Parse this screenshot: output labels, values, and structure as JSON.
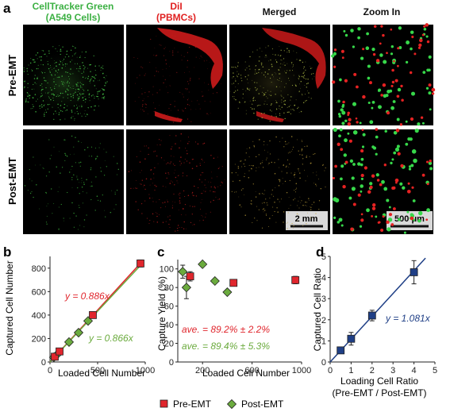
{
  "panel_a": {
    "letter": "a",
    "column_headers": [
      {
        "lines": [
          "CellTracker Green",
          "(A549 Cells)"
        ],
        "color": "#3cb043"
      },
      {
        "lines": [
          "DiI",
          "(PBMCs)"
        ],
        "color": "#e02020"
      },
      {
        "lines": [
          "Merged"
        ],
        "color": "#111111"
      },
      {
        "lines": [
          "Zoom In"
        ],
        "color": "#111111"
      }
    ],
    "row_labels": [
      "Pre-EMT",
      "Post-EMT"
    ],
    "scale_bars": {
      "main": "2 mm",
      "zoom": "500 μm"
    }
  },
  "colors": {
    "green": "#6bab3e",
    "red": "#e0262d",
    "navy": "#1f3f86",
    "green_cells": "#37d84a",
    "red_cells": "#e52222"
  },
  "legend": {
    "pre": "Pre-EMT",
    "post": "Post-EMT"
  },
  "chart_data": [
    {
      "panel": "b",
      "type": "scatter",
      "xlabel": "Loaded Cell Number",
      "ylabel": "Captured Cell Number",
      "xlim": [
        0,
        1000
      ],
      "ylim": [
        0,
        900
      ],
      "xticks": [
        0,
        500,
        1000
      ],
      "yticks": [
        0,
        200,
        400,
        600,
        800
      ],
      "series": [
        {
          "name": "Pre-EMT",
          "x": [
            50,
            100,
            450,
            950
          ],
          "y": [
            45,
            90,
            400,
            840
          ],
          "yerr": [
            3,
            5,
            10,
            30
          ]
        },
        {
          "name": "Post-EMT",
          "x": [
            40,
            70,
            200,
            300,
            400
          ],
          "y": [
            40,
            60,
            170,
            250,
            350
          ],
          "yerr": [
            0,
            0,
            0,
            0,
            0
          ]
        }
      ],
      "fits": [
        {
          "series": "Pre-EMT",
          "slope": 0.886,
          "label": "y = 0.886x"
        },
        {
          "series": "Post-EMT",
          "slope": 0.866,
          "label": "y = 0.866x"
        }
      ]
    },
    {
      "panel": "c",
      "type": "scatter",
      "xlabel": "Loaded Cell Number",
      "ylabel": "Capture Yield (%)",
      "xlim": [
        0,
        1000
      ],
      "ylim": [
        0,
        110
      ],
      "xticks": [
        200,
        600,
        1000
      ],
      "yticks": [
        0,
        20,
        40,
        60,
        80,
        100
      ],
      "series": [
        {
          "name": "Pre-EMT",
          "x": [
            100,
            450,
            950
          ],
          "y": [
            92,
            85,
            88
          ],
          "yerr": [
            5,
            3,
            4
          ]
        },
        {
          "name": "Post-EMT",
          "x": [
            40,
            70,
            200,
            300,
            400
          ],
          "y": [
            97,
            80,
            105,
            87,
            75
          ],
          "yerr": [
            7,
            12,
            0,
            0,
            0
          ]
        }
      ],
      "annotations": [
        {
          "text": "ave. = 89.2% ± 2.2%",
          "series": "Pre-EMT"
        },
        {
          "text": "ave. = 89.4% ± 5.3%",
          "series": "Post-EMT"
        }
      ]
    },
    {
      "panel": "d",
      "type": "scatter",
      "xlabel": [
        "Loading Cell Ratio",
        "(Pre-EMT / Post-EMT)"
      ],
      "ylabel": "Captured Cell Ratio",
      "xlim": [
        0,
        5
      ],
      "ylim": [
        0,
        5
      ],
      "xticks": [
        0,
        1,
        2,
        3,
        4,
        5
      ],
      "yticks": [
        0,
        1,
        2,
        3,
        4,
        5
      ],
      "series": [
        {
          "x": [
            0.5,
            1,
            2,
            4
          ],
          "y": [
            0.55,
            1.1,
            2.2,
            4.25
          ],
          "yerr": [
            0.1,
            0.3,
            0.25,
            0.55
          ]
        }
      ],
      "fits": [
        {
          "slope": 1.081,
          "label": "y = 1.081x"
        }
      ]
    }
  ]
}
